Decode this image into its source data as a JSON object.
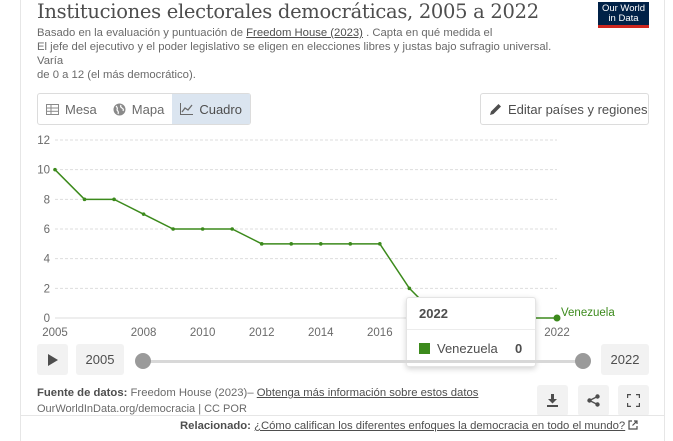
{
  "header": {
    "title": "Instituciones electorales democráticas, 2005 a 2022",
    "subtitle_line1_prefix": "Basado en la evaluación y puntuación de",
    "subtitle_link": "Freedom House (2023)",
    "subtitle_line1_suffix": ". Capta en qué medida el",
    "subtitle_line2": "El jefe del ejecutivo y el poder legislativo se eligen en elecciones libres y justas bajo sufragio universal.",
    "subtitle_line3": "Varía",
    "subtitle_line4": "de 0 a 12 (el más democrático).",
    "logo_line1": "Our World",
    "logo_line2": "in Data"
  },
  "tabs": [
    {
      "label": "Mesa",
      "icon": "table-icon",
      "active": false
    },
    {
      "label": "Mapa",
      "icon": "globe-icon",
      "active": false
    },
    {
      "label": "Cuadro",
      "icon": "line-chart-icon",
      "active": true
    }
  ],
  "edit_button": {
    "label": "Editar países y regiones",
    "icon": "pencil-icon"
  },
  "chart_data": {
    "type": "line",
    "x": [
      2005,
      2006,
      2007,
      2008,
      2009,
      2010,
      2011,
      2012,
      2013,
      2014,
      2015,
      2016,
      2017,
      2018,
      2019,
      2020,
      2021,
      2022
    ],
    "series": [
      {
        "name": "Venezuela",
        "color": "#3c8a1c",
        "values": [
          10,
          8,
          8,
          7,
          6,
          6,
          6,
          5,
          5,
          5,
          5,
          5,
          2,
          0,
          0,
          0,
          0,
          0
        ]
      }
    ],
    "xticks": [
      "2005",
      "2008",
      "2010",
      "2012",
      "2014",
      "2016",
      "2022"
    ],
    "yticks": [
      "0",
      "2",
      "4",
      "6",
      "8",
      "10",
      "12"
    ],
    "xlim": [
      2005,
      2022
    ],
    "ylim": [
      0,
      12
    ],
    "grid": true,
    "end_label": "Venezuela"
  },
  "tooltip": {
    "year": "2022",
    "entity": "Venezuela",
    "value": "0",
    "color": "#3c8a1c"
  },
  "timeline": {
    "start_year": "2005",
    "end_year": "2022",
    "play_icon": "play-icon"
  },
  "footer": {
    "source_label": "Fuente de datos:",
    "source_value": "Freedom House (2023)–",
    "source_link": "Obtenga más información sobre estos datos",
    "license": "OurWorldInData.org/democracia | CC POR",
    "related_label": "Relacionado:",
    "related_link": "¿Cómo califican los diferentes enfoques la democracia en todo el mundo?"
  },
  "actions": [
    {
      "name": "download-icon"
    },
    {
      "name": "share-icon"
    },
    {
      "name": "fullscreen-icon"
    }
  ]
}
